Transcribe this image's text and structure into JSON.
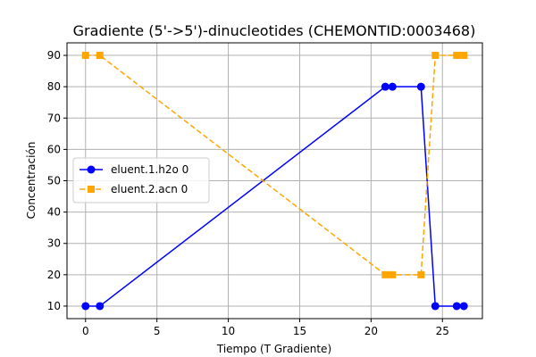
{
  "chart_data": {
    "type": "line",
    "title": "Gradiente (5'->5')-dinucleotides (CHEMONTID:0003468)",
    "xlabel": "Tiempo (T Gradiente)",
    "ylabel": "Concentración",
    "xlim": [
      -1.3,
      27.8
    ],
    "ylim": [
      6,
      94
    ],
    "x_ticks": [
      0,
      5,
      10,
      15,
      20,
      25
    ],
    "y_ticks": [
      10,
      20,
      30,
      40,
      50,
      60,
      70,
      80,
      90
    ],
    "grid": true,
    "legend_position": "center-left",
    "series": [
      {
        "name": "eluent.1.h2o 0",
        "color": "#0000ff",
        "line_style": "solid",
        "marker": "circle",
        "x": [
          0,
          1,
          21,
          21.5,
          23.5,
          24.5,
          26,
          26.5
        ],
        "y": [
          10,
          10,
          80,
          80,
          80,
          10,
          10,
          10
        ]
      },
      {
        "name": "eluent.2.acn 0",
        "color": "#ffa500",
        "line_style": "dashed",
        "marker": "square",
        "x": [
          0,
          1,
          21,
          21.5,
          23.5,
          24.5,
          26,
          26.5
        ],
        "y": [
          90,
          90,
          20,
          20,
          20,
          90,
          90,
          90
        ]
      }
    ]
  }
}
